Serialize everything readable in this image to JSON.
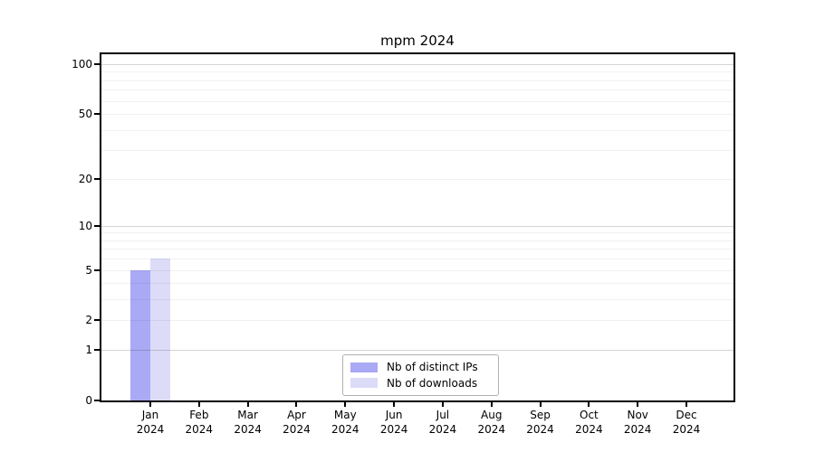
{
  "chart_data": {
    "type": "bar",
    "title": "mpm 2024",
    "months": [
      "Jan",
      "Feb",
      "Mar",
      "Apr",
      "May",
      "Jun",
      "Jul",
      "Aug",
      "Sep",
      "Oct",
      "Nov",
      "Dec"
    ],
    "year": "2024",
    "categories": [
      "Jan 2024",
      "Feb 2024",
      "Mar 2024",
      "Apr 2024",
      "May 2024",
      "Jun 2024",
      "Jul 2024",
      "Aug 2024",
      "Sep 2024",
      "Oct 2024",
      "Nov 2024",
      "Dec 2024"
    ],
    "series": [
      {
        "name": "Nb of distinct IPs",
        "color": "#a9a9f6",
        "values": [
          5,
          0,
          0,
          0,
          0,
          0,
          0,
          0,
          0,
          0,
          0,
          0
        ]
      },
      {
        "name": "Nb of downloads",
        "color": "#dcdcf8",
        "values": [
          6,
          0,
          0,
          0,
          0,
          0,
          0,
          0,
          0,
          0,
          0,
          0
        ]
      }
    ],
    "yscale": "log1p",
    "ylim": [
      0,
      115
    ],
    "yticks": [
      0,
      1,
      2,
      5,
      10,
      20,
      50,
      100
    ],
    "major_gridlines": [
      1,
      10,
      100
    ],
    "minor_gridlines": [
      2,
      3,
      4,
      5,
      6,
      7,
      8,
      9,
      20,
      30,
      40,
      50,
      60,
      70,
      80,
      90
    ],
    "grid": "on",
    "legend_position": "bottom-center"
  }
}
